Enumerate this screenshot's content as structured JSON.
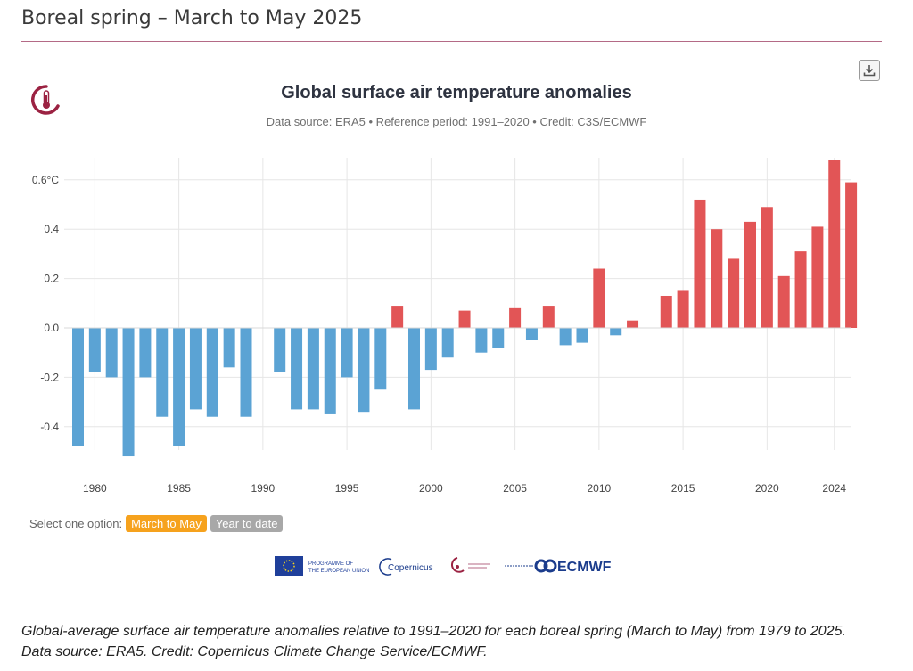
{
  "header": {
    "title": "Boreal spring – March to May 2025"
  },
  "toolbar": {
    "download_icon": "download-icon"
  },
  "options": {
    "label": "Select one option:",
    "items": [
      {
        "label": "March to May",
        "active": true
      },
      {
        "label": "Year to date",
        "active": false
      }
    ]
  },
  "logos": {
    "eu_text1": "PROGRAMME OF",
    "eu_text2": "THE EUROPEAN UNION",
    "copernicus": "Copernicus",
    "ecmwf": "ECMWF"
  },
  "caption": "Global-average surface air temperature anomalies relative to 1991–2020 for each boreal spring (March to May) from 1979 to 2025. Data source: ERA5. Credit: Copernicus Climate Change Service/ECMWF.",
  "colors": {
    "positive": "#e25556",
    "negative": "#5ba3d4",
    "accent": "#b46a86"
  },
  "chart_data": {
    "type": "bar",
    "title": "Global surface air temperature anomalies",
    "subtitle": "Data source: ERA5 • Reference period: 1991–2020 • Credit: C3S/ECMWF",
    "x_tick_labels": [
      "1980",
      "1985",
      "1990",
      "1995",
      "2000",
      "2005",
      "2010",
      "2015",
      "2020",
      "2024"
    ],
    "y_tick_labels": [
      "0.6°C",
      "0.4",
      "0.2",
      "0.0",
      "-0.2",
      "-0.4"
    ],
    "ylim": [
      -0.52,
      0.68
    ],
    "grid": true,
    "x": [
      1979,
      1980,
      1981,
      1982,
      1983,
      1984,
      1985,
      1986,
      1987,
      1988,
      1989,
      1990,
      1991,
      1992,
      1993,
      1994,
      1995,
      1996,
      1997,
      1998,
      1999,
      2000,
      2001,
      2002,
      2003,
      2004,
      2005,
      2006,
      2007,
      2008,
      2009,
      2010,
      2011,
      2012,
      2013,
      2014,
      2015,
      2016,
      2017,
      2018,
      2019,
      2020,
      2021,
      2022,
      2023,
      2024,
      2025
    ],
    "values": [
      -0.48,
      -0.18,
      -0.2,
      -0.52,
      -0.2,
      -0.36,
      -0.48,
      -0.33,
      -0.36,
      -0.16,
      -0.36,
      0.0,
      -0.18,
      -0.33,
      -0.33,
      -0.35,
      -0.2,
      -0.34,
      -0.25,
      0.09,
      -0.33,
      -0.17,
      -0.12,
      0.07,
      -0.1,
      -0.08,
      0.08,
      -0.05,
      0.09,
      -0.07,
      -0.06,
      0.24,
      -0.03,
      0.03,
      0.0,
      0.13,
      0.15,
      0.52,
      0.4,
      0.28,
      0.43,
      0.49,
      0.21,
      0.31,
      0.41,
      0.68,
      0.59
    ]
  }
}
